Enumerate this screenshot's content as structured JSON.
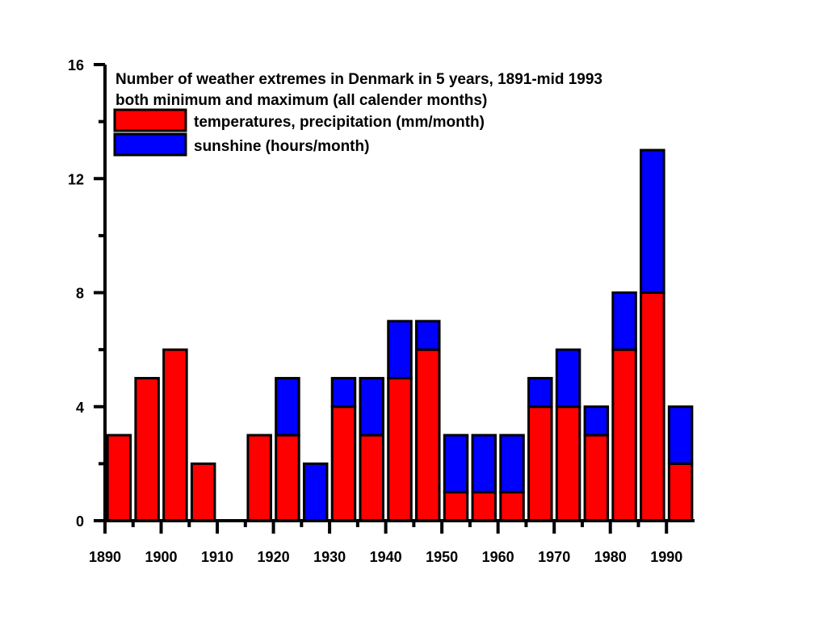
{
  "chart_data": {
    "type": "bar",
    "stacked": true,
    "title": "Number of weather extremes in Denmark in 5 years, 1891-mid 1993",
    "subtitle": "both minimum and maximum (all calender months)",
    "xlabel": "",
    "ylabel": "",
    "xlim": [
      1890,
      1995
    ],
    "ylim": [
      0,
      16
    ],
    "x_ticks": [
      1890,
      1900,
      1910,
      1920,
      1930,
      1940,
      1950,
      1960,
      1970,
      1980,
      1990
    ],
    "y_ticks": [
      0,
      4,
      8,
      12,
      16
    ],
    "y_minor_ticks": [
      2,
      6,
      10,
      14
    ],
    "grid": false,
    "legend_position": "top-left",
    "bin_width": 5,
    "x": [
      1891,
      1896,
      1901,
      1906,
      1911,
      1916,
      1921,
      1926,
      1931,
      1936,
      1941,
      1946,
      1951,
      1956,
      1961,
      1966,
      1971,
      1976,
      1981,
      1986,
      1991
    ],
    "series": [
      {
        "name": "temperatures, precipitation (mm/month)",
        "color": "#ff0000",
        "values": [
          3,
          5,
          6,
          2,
          0,
          3,
          3,
          0,
          4,
          3,
          5,
          6,
          1,
          1,
          1,
          4,
          4,
          3,
          6,
          8,
          2
        ]
      },
      {
        "name": "sunshine (hours/month)",
        "color": "#0000ff",
        "values": [
          0,
          0,
          0,
          0,
          0,
          0,
          2,
          2,
          1,
          2,
          2,
          1,
          2,
          2,
          2,
          1,
          2,
          1,
          2,
          5,
          2
        ]
      }
    ]
  }
}
